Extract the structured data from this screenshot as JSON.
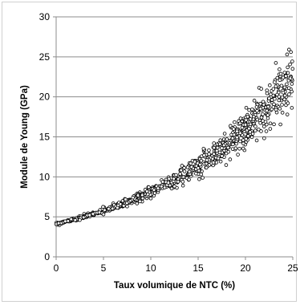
{
  "chart_data": {
    "type": "scatter",
    "title": "",
    "xlabel": "Taux volumique  de NTC (%)",
    "ylabel": "Module de Young (GPa)",
    "xlim": [
      0,
      25
    ],
    "ylim": [
      0,
      30
    ],
    "x_ticks": [
      "0",
      "5",
      "10",
      "15",
      "20",
      "25"
    ],
    "y_ticks": [
      "0",
      "5",
      "10",
      "15",
      "20",
      "25",
      "30"
    ],
    "grid": "horizontal",
    "legend": "none",
    "marker": "open-circle",
    "marker_color": "#000000",
    "gridline_color": "#8c8c8c",
    "trend": {
      "model": "exponential",
      "y_at_0": 4.1,
      "y_at_25": 22.5
    },
    "spread": {
      "relative_sd_at_0": 0.015,
      "relative_sd_at_25": 0.08
    },
    "sample_count": 900,
    "points_shown": [
      [
        0.0,
        4.1
      ],
      [
        2.5,
        4.6
      ],
      [
        5.0,
        5.3
      ],
      [
        7.5,
        6.3
      ],
      [
        10.0,
        7.3
      ],
      [
        12.5,
        8.8
      ],
      [
        15.0,
        11.1
      ],
      [
        17.5,
        13.6
      ],
      [
        20.0,
        16.5
      ],
      [
        22.5,
        19.8
      ],
      [
        24.6,
        25.9
      ],
      [
        24.4,
        25.3
      ],
      [
        24.8,
        25.6
      ]
    ]
  }
}
